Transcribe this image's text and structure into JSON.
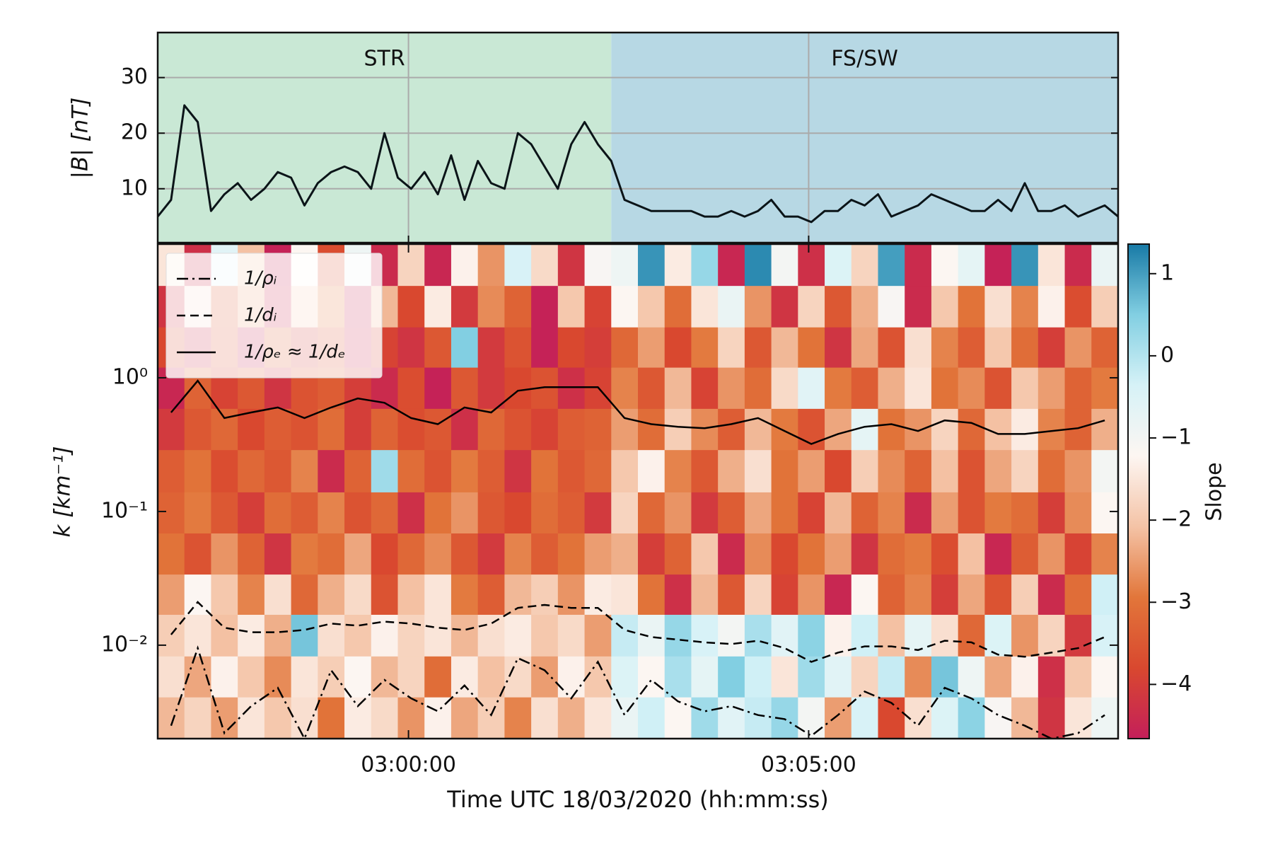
{
  "chart_data": [
    {
      "type": "line",
      "ylabel": "|B| [nT]",
      "xlim": [
        "02:56:52",
        "03:08:52"
      ],
      "ylim": [
        0.3,
        38.1
      ],
      "yticks": [
        10,
        20,
        30
      ],
      "grid": true,
      "regions": [
        {
          "label": "STR",
          "start": "02:56:52",
          "end": "03:02:32",
          "color": "#c9e8d5"
        },
        {
          "label": "FS/SW",
          "start": "03:02:32",
          "end": "03:08:52",
          "color": "#b7d8e4"
        }
      ],
      "x": [
        "02:56:52",
        "02:57:02",
        "02:57:12",
        "02:57:22",
        "02:57:32",
        "02:57:42",
        "02:57:52",
        "02:58:02",
        "02:58:12",
        "02:58:22",
        "02:58:32",
        "02:58:42",
        "02:58:52",
        "02:59:02",
        "02:59:12",
        "02:59:22",
        "02:59:32",
        "02:59:42",
        "02:59:52",
        "03:00:02",
        "03:00:12",
        "03:00:22",
        "03:00:32",
        "03:00:42",
        "03:00:52",
        "03:01:02",
        "03:01:12",
        "03:01:22",
        "03:01:32",
        "03:01:42",
        "03:01:52",
        "03:02:02",
        "03:02:12",
        "03:02:22",
        "03:02:32",
        "03:02:42",
        "03:02:52",
        "03:03:02",
        "03:03:12",
        "03:03:22",
        "03:03:32",
        "03:03:42",
        "03:03:52",
        "03:04:02",
        "03:04:12",
        "03:04:22",
        "03:04:32",
        "03:04:42",
        "03:04:52",
        "03:05:02",
        "03:05:12",
        "03:05:22",
        "03:05:32",
        "03:05:42",
        "03:05:52",
        "03:06:02",
        "03:06:12",
        "03:06:22",
        "03:06:32",
        "03:06:42",
        "03:06:52",
        "03:07:02",
        "03:07:12",
        "03:07:22",
        "03:07:32",
        "03:07:42",
        "03:07:52",
        "03:08:02",
        "03:08:12",
        "03:08:22",
        "03:08:32",
        "03:08:42",
        "03:08:52"
      ],
      "series": [
        {
          "color": "#0b1418",
          "values": [
            5,
            8,
            25,
            22,
            6,
            9,
            11,
            8,
            10,
            13,
            12,
            7,
            11,
            13,
            14,
            13,
            10,
            20,
            12,
            10,
            13,
            9,
            16,
            8,
            15,
            11,
            10,
            20,
            18,
            14,
            10,
            18,
            22,
            18,
            15,
            8,
            7,
            6,
            6,
            6,
            6,
            5,
            5,
            6,
            5,
            6,
            8,
            5,
            5,
            4,
            6,
            6,
            8,
            7,
            9,
            5,
            6,
            7,
            9,
            8,
            7,
            6,
            6,
            8,
            6,
            11,
            6,
            6,
            7,
            5,
            6,
            7,
            5
          ]
        }
      ]
    },
    {
      "type": "heatmap",
      "xlabel": "Time UTC 18/03/2020 (hh:mm:ss)",
      "ylabel": "k  [km⁻¹]",
      "xlim": [
        "02:56:52",
        "03:08:52"
      ],
      "xticks": [
        "03:00:00",
        "03:05:00"
      ],
      "ylim": [
        0.002,
        10
      ],
      "yscale": "log",
      "yticks": [
        {
          "value": 0.01,
          "label": "10⁻²"
        },
        {
          "value": 0.1,
          "label": "10⁻¹"
        },
        {
          "value": 1,
          "label": "10⁰"
        }
      ],
      "x_edges": [
        "02:56:52",
        "02:57:12",
        "02:57:32",
        "02:57:52",
        "02:58:12",
        "02:58:32",
        "02:58:52",
        "02:59:12",
        "02:59:32",
        "02:59:52",
        "03:00:12",
        "03:00:32",
        "03:00:52",
        "03:01:12",
        "03:01:32",
        "03:01:52",
        "03:02:12",
        "03:02:32",
        "03:02:52",
        "03:03:12",
        "03:03:32",
        "03:03:52",
        "03:04:12",
        "03:04:32",
        "03:04:52",
        "03:05:12",
        "03:05:32",
        "03:05:52",
        "03:06:12",
        "03:06:32",
        "03:06:52",
        "03:07:12",
        "03:07:32",
        "03:07:52",
        "03:08:12",
        "03:08:32",
        "03:08:52"
      ],
      "k_edges": [
        0.002,
        0.0041,
        0.0083,
        0.017,
        0.034,
        0.069,
        0.14,
        0.29,
        0.59,
        1.2,
        2.4,
        4.9,
        10
      ],
      "z": [
        [
          -2.2,
          -1.8,
          -2.5,
          -1.5,
          -2.0,
          -1.6,
          -3.0,
          -1.4,
          -1.7,
          -2.6,
          -1.3,
          -2.4,
          -1.9,
          -2.8,
          -1.6,
          -2.3,
          -1.5,
          -0.8,
          -0.3,
          -1.2,
          0.2,
          -0.6,
          -0.2,
          0.3,
          -1.0,
          -2.5,
          -0.4,
          -3.8,
          -1.6,
          -0.5,
          0.4,
          -1.1,
          -2.2,
          -4.2,
          -1.5,
          -0.9
        ],
        [
          -1.6,
          -2.4,
          -1.3,
          -2.0,
          -2.7,
          -1.5,
          -1.9,
          -1.2,
          -2.2,
          -1.8,
          -3.1,
          -1.4,
          -2.1,
          -1.7,
          -2.5,
          -1.3,
          -2.0,
          -0.5,
          -1.2,
          0.1,
          -0.7,
          0.5,
          -0.3,
          -1.5,
          0.2,
          -0.6,
          -1.8,
          -0.2,
          -2.7,
          0.6,
          -0.9,
          -2.4,
          -1.3,
          -4.3,
          -2.0,
          -1.2
        ],
        [
          -1.9,
          -1.5,
          -2.1,
          -1.4,
          -2.3,
          0.6,
          -1.6,
          -2.0,
          -1.3,
          -1.8,
          -1.5,
          -2.2,
          -1.6,
          -1.4,
          -2.0,
          -1.7,
          -2.5,
          -0.2,
          -0.8,
          0.3,
          -0.4,
          -1.0,
          0.1,
          -0.6,
          0.4,
          -1.3,
          -0.3,
          -2.1,
          -0.7,
          -1.6,
          -3.2,
          -0.5,
          -2.6,
          -1.8,
          -4.1,
          -0.4
        ],
        [
          -2.5,
          -1.2,
          -2.0,
          -2.8,
          -1.6,
          -3.2,
          -2.3,
          -1.7,
          -3.6,
          -2.1,
          -1.5,
          -2.9,
          -3.4,
          -2.2,
          -1.9,
          -2.6,
          -1.4,
          -1.5,
          -3.0,
          -4.3,
          -2.2,
          -3.5,
          -1.8,
          -3.9,
          -2.6,
          -4.5,
          -1.2,
          -3.3,
          -2.8,
          -4.0,
          -2.4,
          -3.6,
          -1.9,
          -4.4,
          -3.1,
          -0.3
        ],
        [
          -3.0,
          -3.6,
          -2.6,
          -3.3,
          -4.2,
          -2.9,
          -3.1,
          -2.4,
          -3.8,
          -3.2,
          -2.7,
          -3.5,
          -4.1,
          -2.8,
          -3.4,
          -3.0,
          -2.5,
          -2.3,
          -4.0,
          -3.3,
          -2.0,
          -4.4,
          -2.7,
          -3.8,
          -3.0,
          -2.5,
          -4.2,
          -3.1,
          -2.9,
          -3.7,
          -2.1,
          -4.5,
          -3.4,
          -2.6,
          -3.9,
          -2.8
        ],
        [
          -3.3,
          -2.9,
          -3.5,
          -4.0,
          -3.1,
          -3.4,
          -2.8,
          -3.6,
          -3.2,
          -4.3,
          -3.0,
          -2.6,
          -3.5,
          -3.8,
          -3.1,
          -3.4,
          -4.1,
          -1.8,
          -3.2,
          -2.6,
          -4.1,
          -3.4,
          -2.4,
          -3.0,
          -3.9,
          -2.2,
          -3.3,
          -2.8,
          -4.4,
          -2.5,
          -3.6,
          -2.9,
          -3.1,
          -4.0,
          -2.7,
          -1.2
        ],
        [
          -3.4,
          -3.0,
          -3.7,
          -3.2,
          -3.5,
          -2.8,
          -4.4,
          -3.3,
          0.2,
          -3.1,
          -3.6,
          -2.9,
          -3.4,
          -4.2,
          -3.0,
          -3.5,
          -3.2,
          -2.0,
          -1.3,
          -2.8,
          -3.5,
          -2.3,
          -1.6,
          -3.0,
          -2.5,
          -3.8,
          -1.9,
          -2.7,
          -3.3,
          -2.1,
          -3.6,
          -2.4,
          -1.8,
          -3.1,
          -2.6,
          -1.0
        ],
        [
          -4.1,
          -3.5,
          -3.2,
          -3.8,
          -3.4,
          -3.6,
          -3.1,
          -4.0,
          -3.3,
          -3.7,
          -3.5,
          -4.3,
          -3.2,
          -3.6,
          -3.9,
          -3.4,
          -3.3,
          -2.5,
          -3.1,
          -1.9,
          -2.7,
          -3.4,
          -2.2,
          -2.9,
          -3.6,
          -2.4,
          -0.7,
          -3.0,
          -2.6,
          -1.8,
          -3.2,
          -2.1,
          -1.4,
          -2.8,
          -3.3,
          -2.3
        ],
        [
          -4.5,
          -3.3,
          -3.9,
          -3.5,
          -4.2,
          -3.6,
          -3.4,
          -4.0,
          -4.4,
          -3.7,
          -4.6,
          -3.5,
          -4.1,
          -3.8,
          -3.6,
          -4.3,
          -3.9,
          -2.8,
          -3.5,
          -2.2,
          -3.9,
          -2.6,
          -3.1,
          -1.7,
          -0.6,
          -2.9,
          -3.4,
          -2.3,
          -1.5,
          -3.0,
          -2.7,
          -3.6,
          -2.0,
          -2.5,
          -3.3,
          -2.9
        ],
        [
          -3.8,
          -4.3,
          -3.6,
          -4.5,
          -3.4,
          -4.0,
          -3.7,
          -4.4,
          -3.9,
          -4.2,
          -3.5,
          0.5,
          -4.1,
          -3.6,
          -4.6,
          -3.8,
          -4.0,
          -3.2,
          -2.5,
          -3.8,
          -2.9,
          -1.8,
          -3.5,
          -2.2,
          -3.0,
          -4.2,
          -2.4,
          -3.6,
          -1.6,
          -2.8,
          -3.4,
          -2.0,
          -3.1,
          -4.0,
          -2.6,
          -3.3
        ],
        [
          -4.2,
          -1.6,
          -3.5,
          -2.4,
          -4.4,
          -1.9,
          -3.0,
          -4.5,
          -2.2,
          -3.8,
          -1.4,
          -4.1,
          -2.7,
          -3.3,
          -4.6,
          -2.0,
          -3.9,
          -1.2,
          -2.0,
          -3.1,
          -1.5,
          -0.8,
          -2.6,
          -4.2,
          -1.8,
          -3.5,
          -2.3,
          -1.1,
          -4.4,
          -2.0,
          -3.0,
          -1.6,
          -2.8,
          -1.3,
          -3.7,
          -1.9
        ],
        [
          -1.5,
          -4.3,
          -0.6,
          -2.1,
          -4.6,
          -1.2,
          -3.7,
          -0.9,
          -4.4,
          -1.8,
          -4.5,
          -1.3,
          -2.6,
          -0.4,
          -1.7,
          -4.2,
          -1.1,
          -0.9,
          1.1,
          -1.4,
          0.3,
          -4.5,
          1.2,
          -1.0,
          -4.3,
          -0.5,
          -1.8,
          1.0,
          -4.4,
          -1.2,
          -0.7,
          -4.6,
          1.1,
          -1.5,
          -4.4,
          -0.8
        ]
      ],
      "clim": [
        -4.66,
        1.36
      ],
      "colorscale": [
        "#c41f5a",
        "#d9482f",
        "#e2763a",
        "#f4c3a6",
        "#fdf6f2",
        "#d6f2f7",
        "#82cfe2",
        "#187aa6"
      ],
      "colorbar_label": "Slope",
      "cticks": [
        {
          "value": 1,
          "label": "1"
        },
        {
          "value": 0,
          "label": "0"
        },
        {
          "value": -1,
          "label": "−1"
        },
        {
          "value": -2,
          "label": "−2"
        },
        {
          "value": -3,
          "label": "−3"
        },
        {
          "value": -4,
          "label": "−4"
        }
      ],
      "x": [
        "02:57:02",
        "02:57:22",
        "02:57:42",
        "02:58:02",
        "02:58:22",
        "02:58:42",
        "02:59:02",
        "02:59:22",
        "02:59:42",
        "03:00:02",
        "03:00:22",
        "03:00:42",
        "03:01:02",
        "03:01:22",
        "03:01:42",
        "03:02:02",
        "03:02:22",
        "03:02:42",
        "03:03:02",
        "03:03:22",
        "03:03:42",
        "03:04:02",
        "03:04:22",
        "03:04:42",
        "03:05:02",
        "03:05:22",
        "03:05:42",
        "03:06:02",
        "03:06:22",
        "03:06:42",
        "03:07:02",
        "03:07:22",
        "03:07:42",
        "03:08:02",
        "03:08:22",
        "03:08:42"
      ],
      "series": [
        {
          "name": "1/ρᵢ",
          "color": "#000000",
          "linestyle": "dashdot",
          "values": [
            0.0025,
            0.0095,
            0.0022,
            0.0035,
            0.0048,
            0.002,
            0.0065,
            0.0035,
            0.0055,
            0.004,
            0.0032,
            0.005,
            0.003,
            0.008,
            0.0065,
            0.004,
            0.0075,
            0.003,
            0.0055,
            0.0038,
            0.0032,
            0.0035,
            0.003,
            0.0028,
            0.0021,
            0.003,
            0.0045,
            0.0037,
            0.0025,
            0.0048,
            0.004,
            0.003,
            0.0025,
            0.002,
            0.0022,
            0.003
          ]
        },
        {
          "name": "1/dᵢ",
          "color": "#000000",
          "linestyle": "dashed",
          "values": [
            0.012,
            0.021,
            0.0135,
            0.0125,
            0.0125,
            0.013,
            0.0145,
            0.014,
            0.015,
            0.0145,
            0.0135,
            0.013,
            0.0145,
            0.019,
            0.02,
            0.019,
            0.019,
            0.013,
            0.0115,
            0.011,
            0.0105,
            0.0102,
            0.0108,
            0.0095,
            0.0075,
            0.0088,
            0.0098,
            0.0098,
            0.0092,
            0.0108,
            0.0105,
            0.0085,
            0.0082,
            0.0088,
            0.0095,
            0.0115
          ]
        },
        {
          "name": "1/ρₑ ≈ 1/dₑ",
          "color": "#000000",
          "linestyle": "solid",
          "values": [
            0.55,
            0.95,
            0.5,
            0.55,
            0.6,
            0.5,
            0.6,
            0.7,
            0.65,
            0.5,
            0.45,
            0.6,
            0.55,
            0.8,
            0.85,
            0.85,
            0.85,
            0.5,
            0.45,
            0.43,
            0.42,
            0.45,
            0.5,
            0.4,
            0.32,
            0.38,
            0.43,
            0.45,
            0.4,
            0.48,
            0.46,
            0.38,
            0.38,
            0.4,
            0.42,
            0.48
          ]
        }
      ],
      "legend": "upper left"
    }
  ]
}
